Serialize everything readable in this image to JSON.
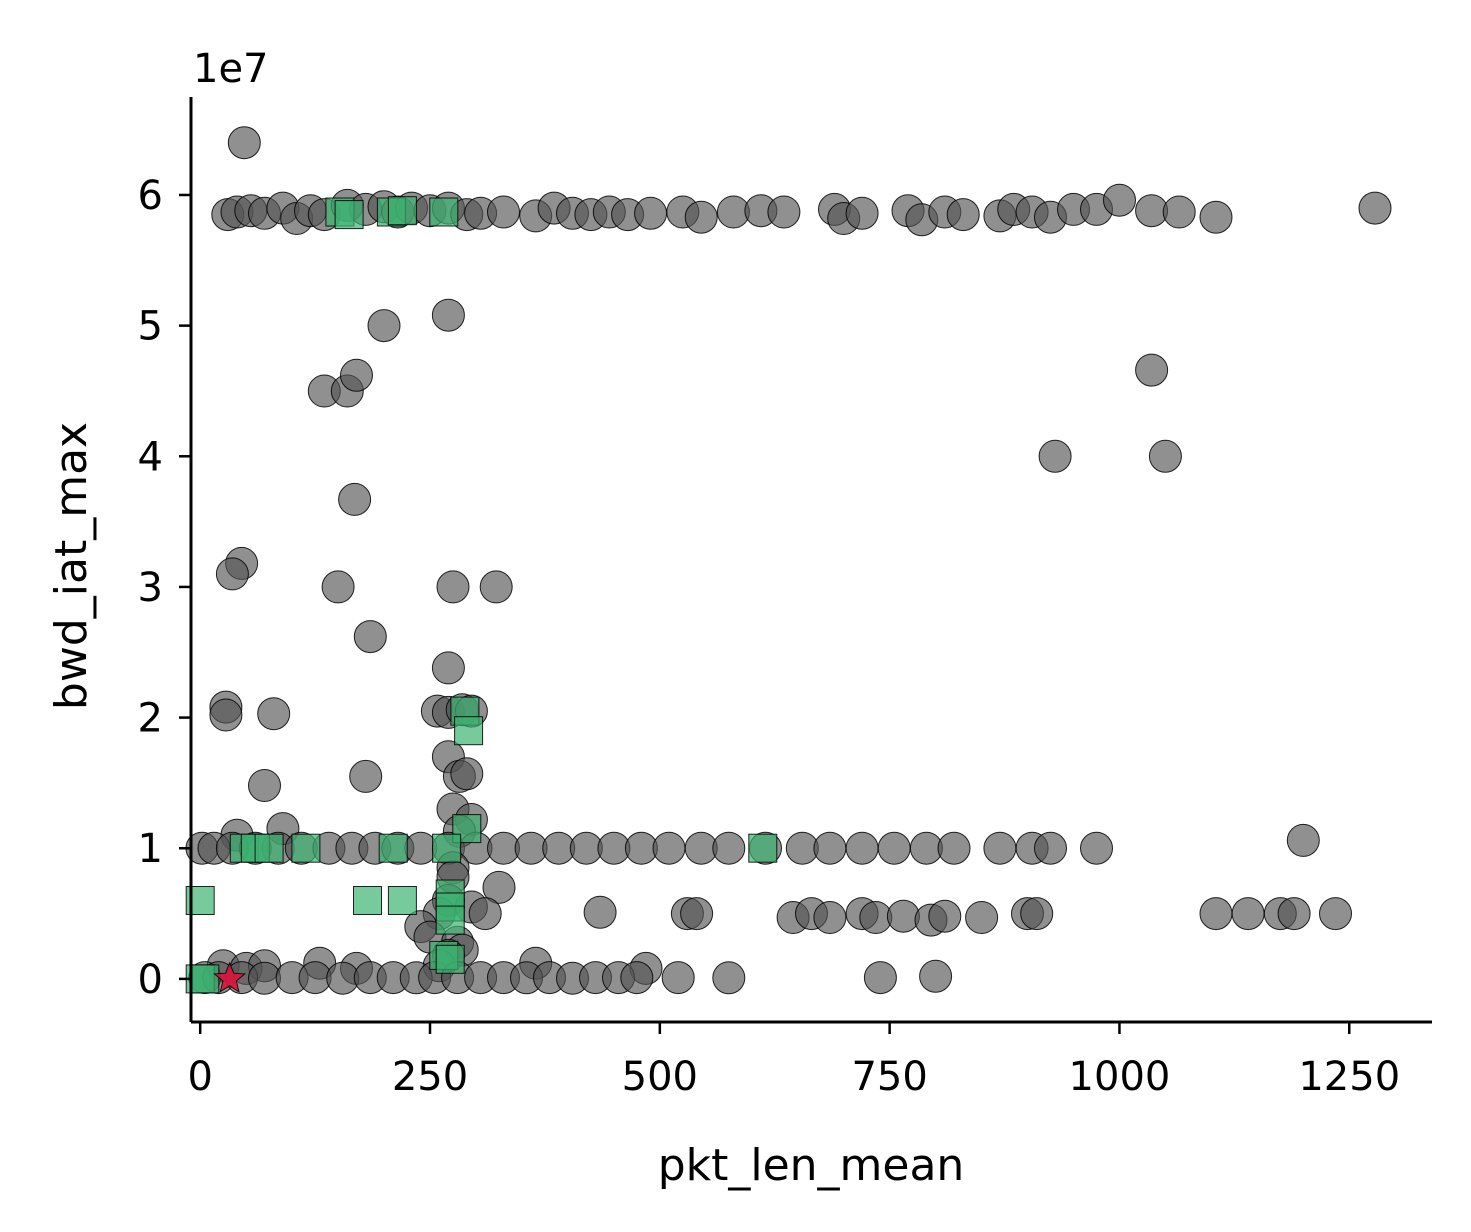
{
  "chart_data": {
    "type": "scatter",
    "title": "",
    "xlabel": "pkt_len_mean",
    "ylabel": "bwd_iat_max",
    "y_offset_label": "1e7",
    "xlim": [
      -10,
      1340
    ],
    "ylim": [
      -3300000,
      67500000
    ],
    "xticks": [
      0,
      250,
      500,
      750,
      1000,
      1250
    ],
    "yticks": [
      0,
      10000000,
      20000000,
      30000000,
      40000000,
      50000000,
      60000000
    ],
    "ytick_labels": [
      "0",
      "1",
      "2",
      "3",
      "4",
      "5",
      "6"
    ],
    "grid": false,
    "legend": "none",
    "colors": {
      "gray": "#555555",
      "green": "#3cb371",
      "red": "#dc143c"
    },
    "series": [
      {
        "marker": "circle",
        "color": "#555555",
        "points": [
          [
            48,
            64000000
          ],
          [
            30,
            58500000
          ],
          [
            40,
            58700000
          ],
          [
            55,
            58800000
          ],
          [
            70,
            58600000
          ],
          [
            90,
            59000000
          ],
          [
            105,
            58200000
          ],
          [
            120,
            58800000
          ],
          [
            135,
            58500000
          ],
          [
            160,
            59200000
          ],
          [
            180,
            58900000
          ],
          [
            200,
            59100000
          ],
          [
            215,
            58700000
          ],
          [
            230,
            59000000
          ],
          [
            250,
            58800000
          ],
          [
            270,
            59000000
          ],
          [
            290,
            58500000
          ],
          [
            305,
            58600000
          ],
          [
            330,
            58700000
          ],
          [
            365,
            58400000
          ],
          [
            385,
            59000000
          ],
          [
            405,
            58600000
          ],
          [
            425,
            58500000
          ],
          [
            445,
            58700000
          ],
          [
            465,
            58500000
          ],
          [
            490,
            58600000
          ],
          [
            525,
            58700000
          ],
          [
            545,
            58300000
          ],
          [
            580,
            58700000
          ],
          [
            610,
            58800000
          ],
          [
            635,
            58700000
          ],
          [
            690,
            58900000
          ],
          [
            700,
            58200000
          ],
          [
            720,
            58600000
          ],
          [
            770,
            58800000
          ],
          [
            785,
            58100000
          ],
          [
            810,
            58700000
          ],
          [
            830,
            58500000
          ],
          [
            870,
            58400000
          ],
          [
            885,
            58900000
          ],
          [
            905,
            58700000
          ],
          [
            925,
            58300000
          ],
          [
            950,
            58900000
          ],
          [
            975,
            58900000
          ],
          [
            1000,
            59600000
          ],
          [
            1035,
            58800000
          ],
          [
            1065,
            58700000
          ],
          [
            1105,
            58300000
          ],
          [
            1278,
            59000000
          ],
          [
            270,
            50800000
          ],
          [
            200,
            50000000
          ],
          [
            135,
            45000000
          ],
          [
            160,
            45000000
          ],
          [
            170,
            46200000
          ],
          [
            1035,
            46600000
          ],
          [
            930,
            40000000
          ],
          [
            1050,
            40000000
          ],
          [
            168,
            36700000
          ],
          [
            45,
            31800000
          ],
          [
            35,
            31000000
          ],
          [
            150,
            30000000
          ],
          [
            275,
            30000000
          ],
          [
            322,
            30000000
          ],
          [
            185,
            26200000
          ],
          [
            270,
            23800000
          ],
          [
            28,
            20800000
          ],
          [
            28,
            20200000
          ],
          [
            80,
            20300000
          ],
          [
            258,
            20500000
          ],
          [
            270,
            20400000
          ],
          [
            285,
            20600000
          ],
          [
            295,
            20500000
          ],
          [
            270,
            17000000
          ],
          [
            282,
            15500000
          ],
          [
            290,
            15700000
          ],
          [
            180,
            15500000
          ],
          [
            70,
            14800000
          ],
          [
            275,
            13000000
          ],
          [
            295,
            12200000
          ],
          [
            90,
            11500000
          ],
          [
            40,
            11000000
          ],
          [
            282,
            11300000
          ],
          [
            2,
            10000000
          ],
          [
            15,
            10000000
          ],
          [
            35,
            10000000
          ],
          [
            60,
            10000000
          ],
          [
            85,
            10000000
          ],
          [
            110,
            10000000
          ],
          [
            140,
            10000000
          ],
          [
            165,
            10000000
          ],
          [
            190,
            10000000
          ],
          [
            215,
            10000000
          ],
          [
            240,
            10000000
          ],
          [
            270,
            10000000
          ],
          [
            300,
            10000000
          ],
          [
            330,
            10000000
          ],
          [
            360,
            10000000
          ],
          [
            390,
            10000000
          ],
          [
            420,
            10000000
          ],
          [
            450,
            10000000
          ],
          [
            480,
            10000000
          ],
          [
            510,
            10000000
          ],
          [
            545,
            10000000
          ],
          [
            575,
            10000000
          ],
          [
            615,
            10000000
          ],
          [
            655,
            10000000
          ],
          [
            685,
            10000000
          ],
          [
            720,
            10000000
          ],
          [
            755,
            10000000
          ],
          [
            790,
            10000000
          ],
          [
            820,
            10000000
          ],
          [
            870,
            10000000
          ],
          [
            905,
            10000000
          ],
          [
            925,
            10000000
          ],
          [
            975,
            10000000
          ],
          [
            1200,
            10600000
          ],
          [
            275,
            8500000
          ],
          [
            275,
            7800000
          ],
          [
            325,
            7000000
          ],
          [
            270,
            6000000
          ],
          [
            295,
            5500000
          ],
          [
            260,
            5000000
          ],
          [
            310,
            5000000
          ],
          [
            240,
            4000000
          ],
          [
            250,
            3200000
          ],
          [
            280,
            2800000
          ],
          [
            285,
            2200000
          ],
          [
            270,
            1800000
          ],
          [
            435,
            5100000
          ],
          [
            530,
            5000000
          ],
          [
            540,
            5000000
          ],
          [
            645,
            4700000
          ],
          [
            665,
            5000000
          ],
          [
            685,
            4700000
          ],
          [
            720,
            5000000
          ],
          [
            735,
            4700000
          ],
          [
            765,
            4800000
          ],
          [
            795,
            4500000
          ],
          [
            810,
            4800000
          ],
          [
            850,
            4700000
          ],
          [
            900,
            5000000
          ],
          [
            910,
            5000000
          ],
          [
            1105,
            5000000
          ],
          [
            1140,
            5000000
          ],
          [
            1175,
            5000000
          ],
          [
            1190,
            5000000
          ],
          [
            1235,
            5000000
          ],
          [
            25,
            1000000
          ],
          [
            50,
            800000
          ],
          [
            70,
            1000000
          ],
          [
            130,
            1200000
          ],
          [
            170,
            800000
          ],
          [
            260,
            1000000
          ],
          [
            365,
            1200000
          ],
          [
            485,
            800000
          ],
          [
            5,
            100000
          ],
          [
            20,
            100000
          ],
          [
            45,
            100000
          ],
          [
            70,
            50000
          ],
          [
            100,
            100000
          ],
          [
            125,
            100000
          ],
          [
            155,
            50000
          ],
          [
            185,
            100000
          ],
          [
            210,
            100000
          ],
          [
            235,
            80000
          ],
          [
            255,
            100000
          ],
          [
            280,
            100000
          ],
          [
            305,
            100000
          ],
          [
            330,
            100000
          ],
          [
            355,
            80000
          ],
          [
            380,
            100000
          ],
          [
            405,
            50000
          ],
          [
            430,
            100000
          ],
          [
            455,
            100000
          ],
          [
            475,
            100000
          ],
          [
            520,
            100000
          ],
          [
            575,
            80000
          ],
          [
            740,
            100000
          ],
          [
            800,
            200000
          ]
        ]
      },
      {
        "marker": "square",
        "color": "#3cb371",
        "points": [
          [
            152,
            58700000
          ],
          [
            162,
            58500000
          ],
          [
            208,
            58700000
          ],
          [
            220,
            58800000
          ],
          [
            265,
            58700000
          ],
          [
            288,
            20500000
          ],
          [
            292,
            19000000
          ],
          [
            290,
            11500000
          ],
          [
            48,
            10000000
          ],
          [
            60,
            10000000
          ],
          [
            75,
            10000000
          ],
          [
            115,
            10000000
          ],
          [
            210,
            10000000
          ],
          [
            268,
            10000000
          ],
          [
            612,
            10000000
          ],
          [
            0,
            6000000
          ],
          [
            182,
            6000000
          ],
          [
            220,
            6000000
          ],
          [
            272,
            6500000
          ],
          [
            272,
            5500000
          ],
          [
            272,
            4500000
          ],
          [
            265,
            1800000
          ],
          [
            272,
            1500000
          ],
          [
            0,
            0
          ],
          [
            5,
            0
          ]
        ]
      },
      {
        "marker": "star",
        "color": "#dc143c",
        "points": [
          [
            32,
            0
          ]
        ]
      }
    ]
  }
}
